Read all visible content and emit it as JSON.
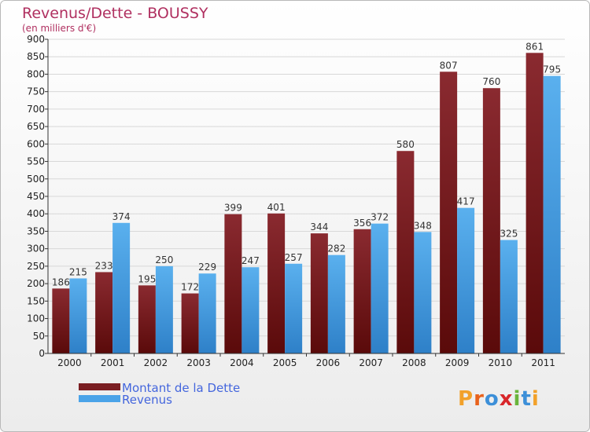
{
  "chart_data": {
    "type": "bar",
    "title": "Revenus/Dette - BOUSSY",
    "subtitle": "(en milliers d'€)",
    "categories": [
      "2000",
      "2001",
      "2002",
      "2003",
      "2004",
      "2005",
      "2006",
      "2007",
      "2008",
      "2009",
      "2010",
      "2011"
    ],
    "series": [
      {
        "name": "Montant de la Dette",
        "color": "#7a1e22",
        "values": [
          186,
          233,
          195,
          172,
          399,
          401,
          344,
          356,
          580,
          807,
          760,
          861
        ]
      },
      {
        "name": "Revenus",
        "color": "#4aa3e8",
        "values": [
          215,
          374,
          250,
          229,
          247,
          257,
          282,
          372,
          348,
          417,
          325,
          795
        ]
      }
    ],
    "ylim": [
      0,
      900
    ],
    "yticks": [
      0,
      50,
      100,
      150,
      200,
      250,
      300,
      350,
      400,
      450,
      500,
      550,
      600,
      650,
      700,
      750,
      800,
      850,
      900
    ],
    "grid": true,
    "legend_position": "bottom-left",
    "logo": "Proxiti"
  },
  "colors": {
    "title": "#b03060",
    "legend_text": "#4466dd"
  }
}
